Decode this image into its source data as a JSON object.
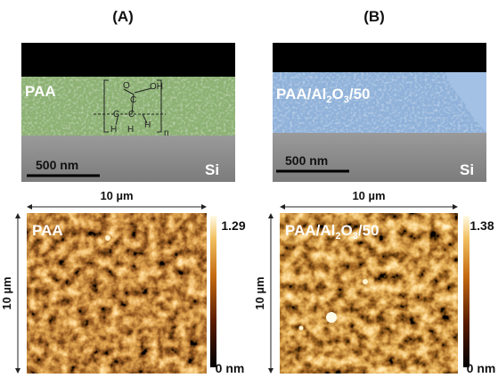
{
  "panels": [
    {
      "label": "(A)",
      "sem": {
        "sample": [
          "PAA"
        ],
        "scale_bar": "500 nm",
        "substrate": "Si",
        "structure": {
          "atoms": [
            "O",
            "OH",
            "C",
            "C",
            "H",
            "C",
            "H",
            "H"
          ],
          "repeat": "n"
        }
      },
      "afm": {
        "width": "10 µm",
        "height": "10 µm",
        "sample": [
          "PAA"
        ],
        "colorbar_max": 1.29,
        "colorbar_min": "0 nm"
      }
    },
    {
      "label": "(B)",
      "sem": {
        "sample": [
          "PAA/Al",
          "2",
          "O",
          "3",
          "/50"
        ],
        "scale_bar": "500 nm",
        "substrate": "Si"
      },
      "afm": {
        "width": "10 µm",
        "height": "10 µm",
        "sample": [
          "PAA/Al",
          "2",
          "O",
          "3",
          "/50"
        ],
        "colorbar_max": 1.38,
        "colorbar_min": "0 nm"
      }
    }
  ]
}
